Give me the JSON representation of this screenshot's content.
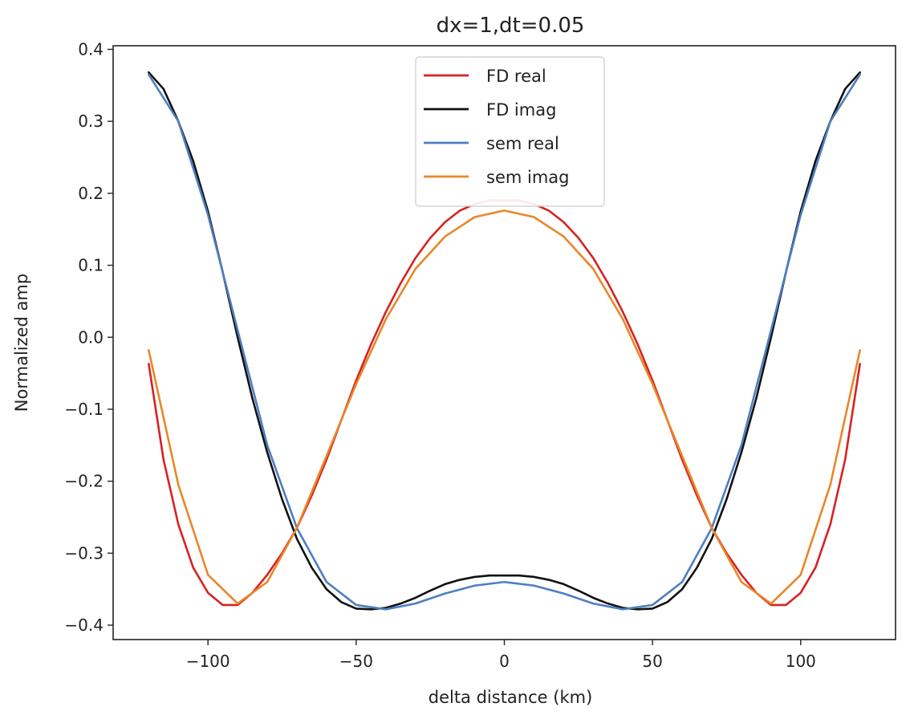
{
  "chart_data": {
    "type": "line",
    "title": "dx=1,dt=0.05",
    "xlabel": "delta distance (km)",
    "ylabel": "Normalized amp",
    "xlim": [
      -132,
      132
    ],
    "ylim": [
      -0.42,
      0.405
    ],
    "xticks": [
      -100,
      -50,
      0,
      50,
      100
    ],
    "xtick_labels": [
      "−100",
      "−50",
      "0",
      "50",
      "100"
    ],
    "yticks": [
      -0.4,
      -0.3,
      -0.2,
      -0.1,
      0.0,
      0.1,
      0.2,
      0.3,
      0.4
    ],
    "ytick_labels": [
      "−0.4",
      "−0.3",
      "−0.2",
      "−0.1",
      "0.0",
      "0.1",
      "0.2",
      "0.3",
      "0.4"
    ],
    "grid": false,
    "legend_position": "top-center",
    "series": [
      {
        "name": "FD real",
        "color": "#d62222",
        "x": [
          -120,
          -115,
          -110,
          -105,
          -100,
          -95,
          -90,
          -85,
          -80,
          -75,
          -70,
          -65,
          -60,
          -55,
          -50,
          -45,
          -40,
          -35,
          -30,
          -25,
          -20,
          -15,
          -10,
          -5,
          0,
          5,
          10,
          15,
          20,
          25,
          30,
          35,
          40,
          45,
          50,
          55,
          60,
          65,
          70,
          75,
          80,
          85,
          90,
          95,
          100,
          105,
          110,
          115,
          120
        ],
        "y": [
          -0.037,
          -0.17,
          -0.26,
          -0.32,
          -0.355,
          -0.372,
          -0.372,
          -0.355,
          -0.33,
          -0.3,
          -0.265,
          -0.22,
          -0.17,
          -0.115,
          -0.06,
          -0.01,
          0.035,
          0.075,
          0.11,
          0.138,
          0.16,
          0.176,
          0.185,
          0.19,
          0.19,
          0.19,
          0.185,
          0.176,
          0.16,
          0.138,
          0.11,
          0.075,
          0.035,
          -0.01,
          -0.06,
          -0.115,
          -0.17,
          -0.22,
          -0.265,
          -0.3,
          -0.33,
          -0.355,
          -0.372,
          -0.372,
          -0.355,
          -0.32,
          -0.26,
          -0.17,
          -0.037
        ]
      },
      {
        "name": "FD imag",
        "color": "#111111",
        "x": [
          -120,
          -115,
          -110,
          -105,
          -100,
          -95,
          -90,
          -85,
          -80,
          -75,
          -70,
          -65,
          -60,
          -55,
          -50,
          -45,
          -40,
          -35,
          -30,
          -25,
          -20,
          -15,
          -10,
          -5,
          0,
          5,
          10,
          15,
          20,
          25,
          30,
          35,
          40,
          45,
          50,
          55,
          60,
          65,
          70,
          75,
          80,
          85,
          90,
          95,
          100,
          105,
          110,
          115,
          120
        ],
        "y": [
          0.368,
          0.345,
          0.3,
          0.245,
          0.175,
          0.09,
          0.0,
          -0.085,
          -0.16,
          -0.225,
          -0.28,
          -0.32,
          -0.35,
          -0.368,
          -0.377,
          -0.378,
          -0.376,
          -0.37,
          -0.362,
          -0.352,
          -0.343,
          -0.337,
          -0.333,
          -0.331,
          -0.331,
          -0.331,
          -0.333,
          -0.337,
          -0.343,
          -0.352,
          -0.362,
          -0.37,
          -0.376,
          -0.378,
          -0.377,
          -0.368,
          -0.35,
          -0.32,
          -0.28,
          -0.225,
          -0.16,
          -0.085,
          0.0,
          0.09,
          0.175,
          0.245,
          0.3,
          0.345,
          0.368
        ]
      },
      {
        "name": "sem real",
        "color": "#4c7fc0",
        "x": [
          -120,
          -110,
          -100,
          -90,
          -80,
          -70,
          -60,
          -50,
          -40,
          -30,
          -20,
          -10,
          0,
          10,
          20,
          30,
          40,
          50,
          60,
          70,
          80,
          90,
          100,
          110,
          120
        ],
        "y": [
          0.365,
          0.3,
          0.17,
          0.01,
          -0.15,
          -0.265,
          -0.34,
          -0.372,
          -0.378,
          -0.37,
          -0.356,
          -0.345,
          -0.34,
          -0.345,
          -0.356,
          -0.37,
          -0.378,
          -0.372,
          -0.34,
          -0.265,
          -0.15,
          0.01,
          0.17,
          0.3,
          0.365
        ]
      },
      {
        "name": "sem imag",
        "color": "#e8872a",
        "x": [
          -120,
          -110,
          -100,
          -90,
          -80,
          -70,
          -60,
          -50,
          -40,
          -30,
          -20,
          -10,
          0,
          10,
          20,
          30,
          40,
          50,
          60,
          70,
          80,
          90,
          100,
          110,
          120
        ],
        "y": [
          -0.018,
          -0.205,
          -0.33,
          -0.37,
          -0.34,
          -0.265,
          -0.165,
          -0.065,
          0.025,
          0.095,
          0.14,
          0.167,
          0.176,
          0.167,
          0.14,
          0.095,
          0.025,
          -0.065,
          -0.165,
          -0.265,
          -0.34,
          -0.37,
          -0.33,
          -0.205,
          -0.018
        ]
      }
    ]
  }
}
